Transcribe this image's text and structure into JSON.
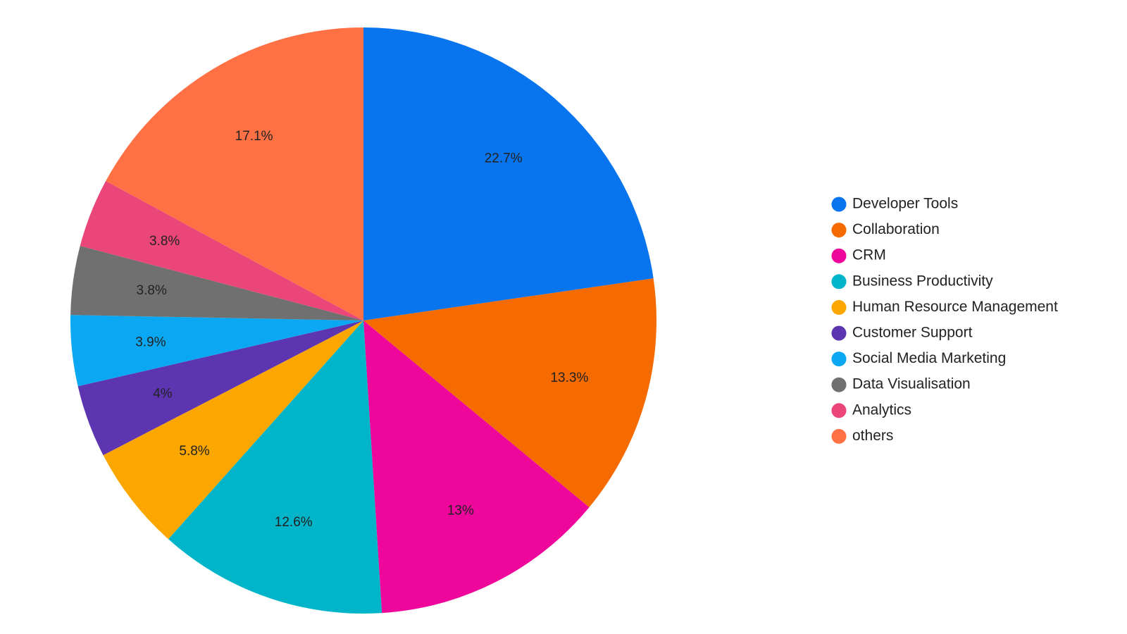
{
  "chart_data": {
    "type": "pie",
    "categories": [
      "Developer Tools",
      "Collaboration",
      "CRM",
      "Business Productivity",
      "Human Resource Management",
      "Customer Support",
      "Social Media Marketing",
      "Data Visualisation",
      "Analytics",
      "others"
    ],
    "values": [
      22.7,
      13.3,
      13,
      12.6,
      5.8,
      4,
      3.9,
      3.8,
      3.8,
      17.1
    ],
    "value_labels": [
      "22.7%",
      "13.3%",
      "13%",
      "12.6%",
      "5.8%",
      "4%",
      "3.9%",
      "3.8%",
      "3.8%",
      "17.1%"
    ],
    "colors": [
      "#0874ee",
      "#f56b00",
      "#ef069a",
      "#00b5c9",
      "#fca600",
      "#5d35b1",
      "#0aa8f2",
      "#707070",
      "#ea4679",
      "#ff7145"
    ],
    "legend": "right"
  }
}
